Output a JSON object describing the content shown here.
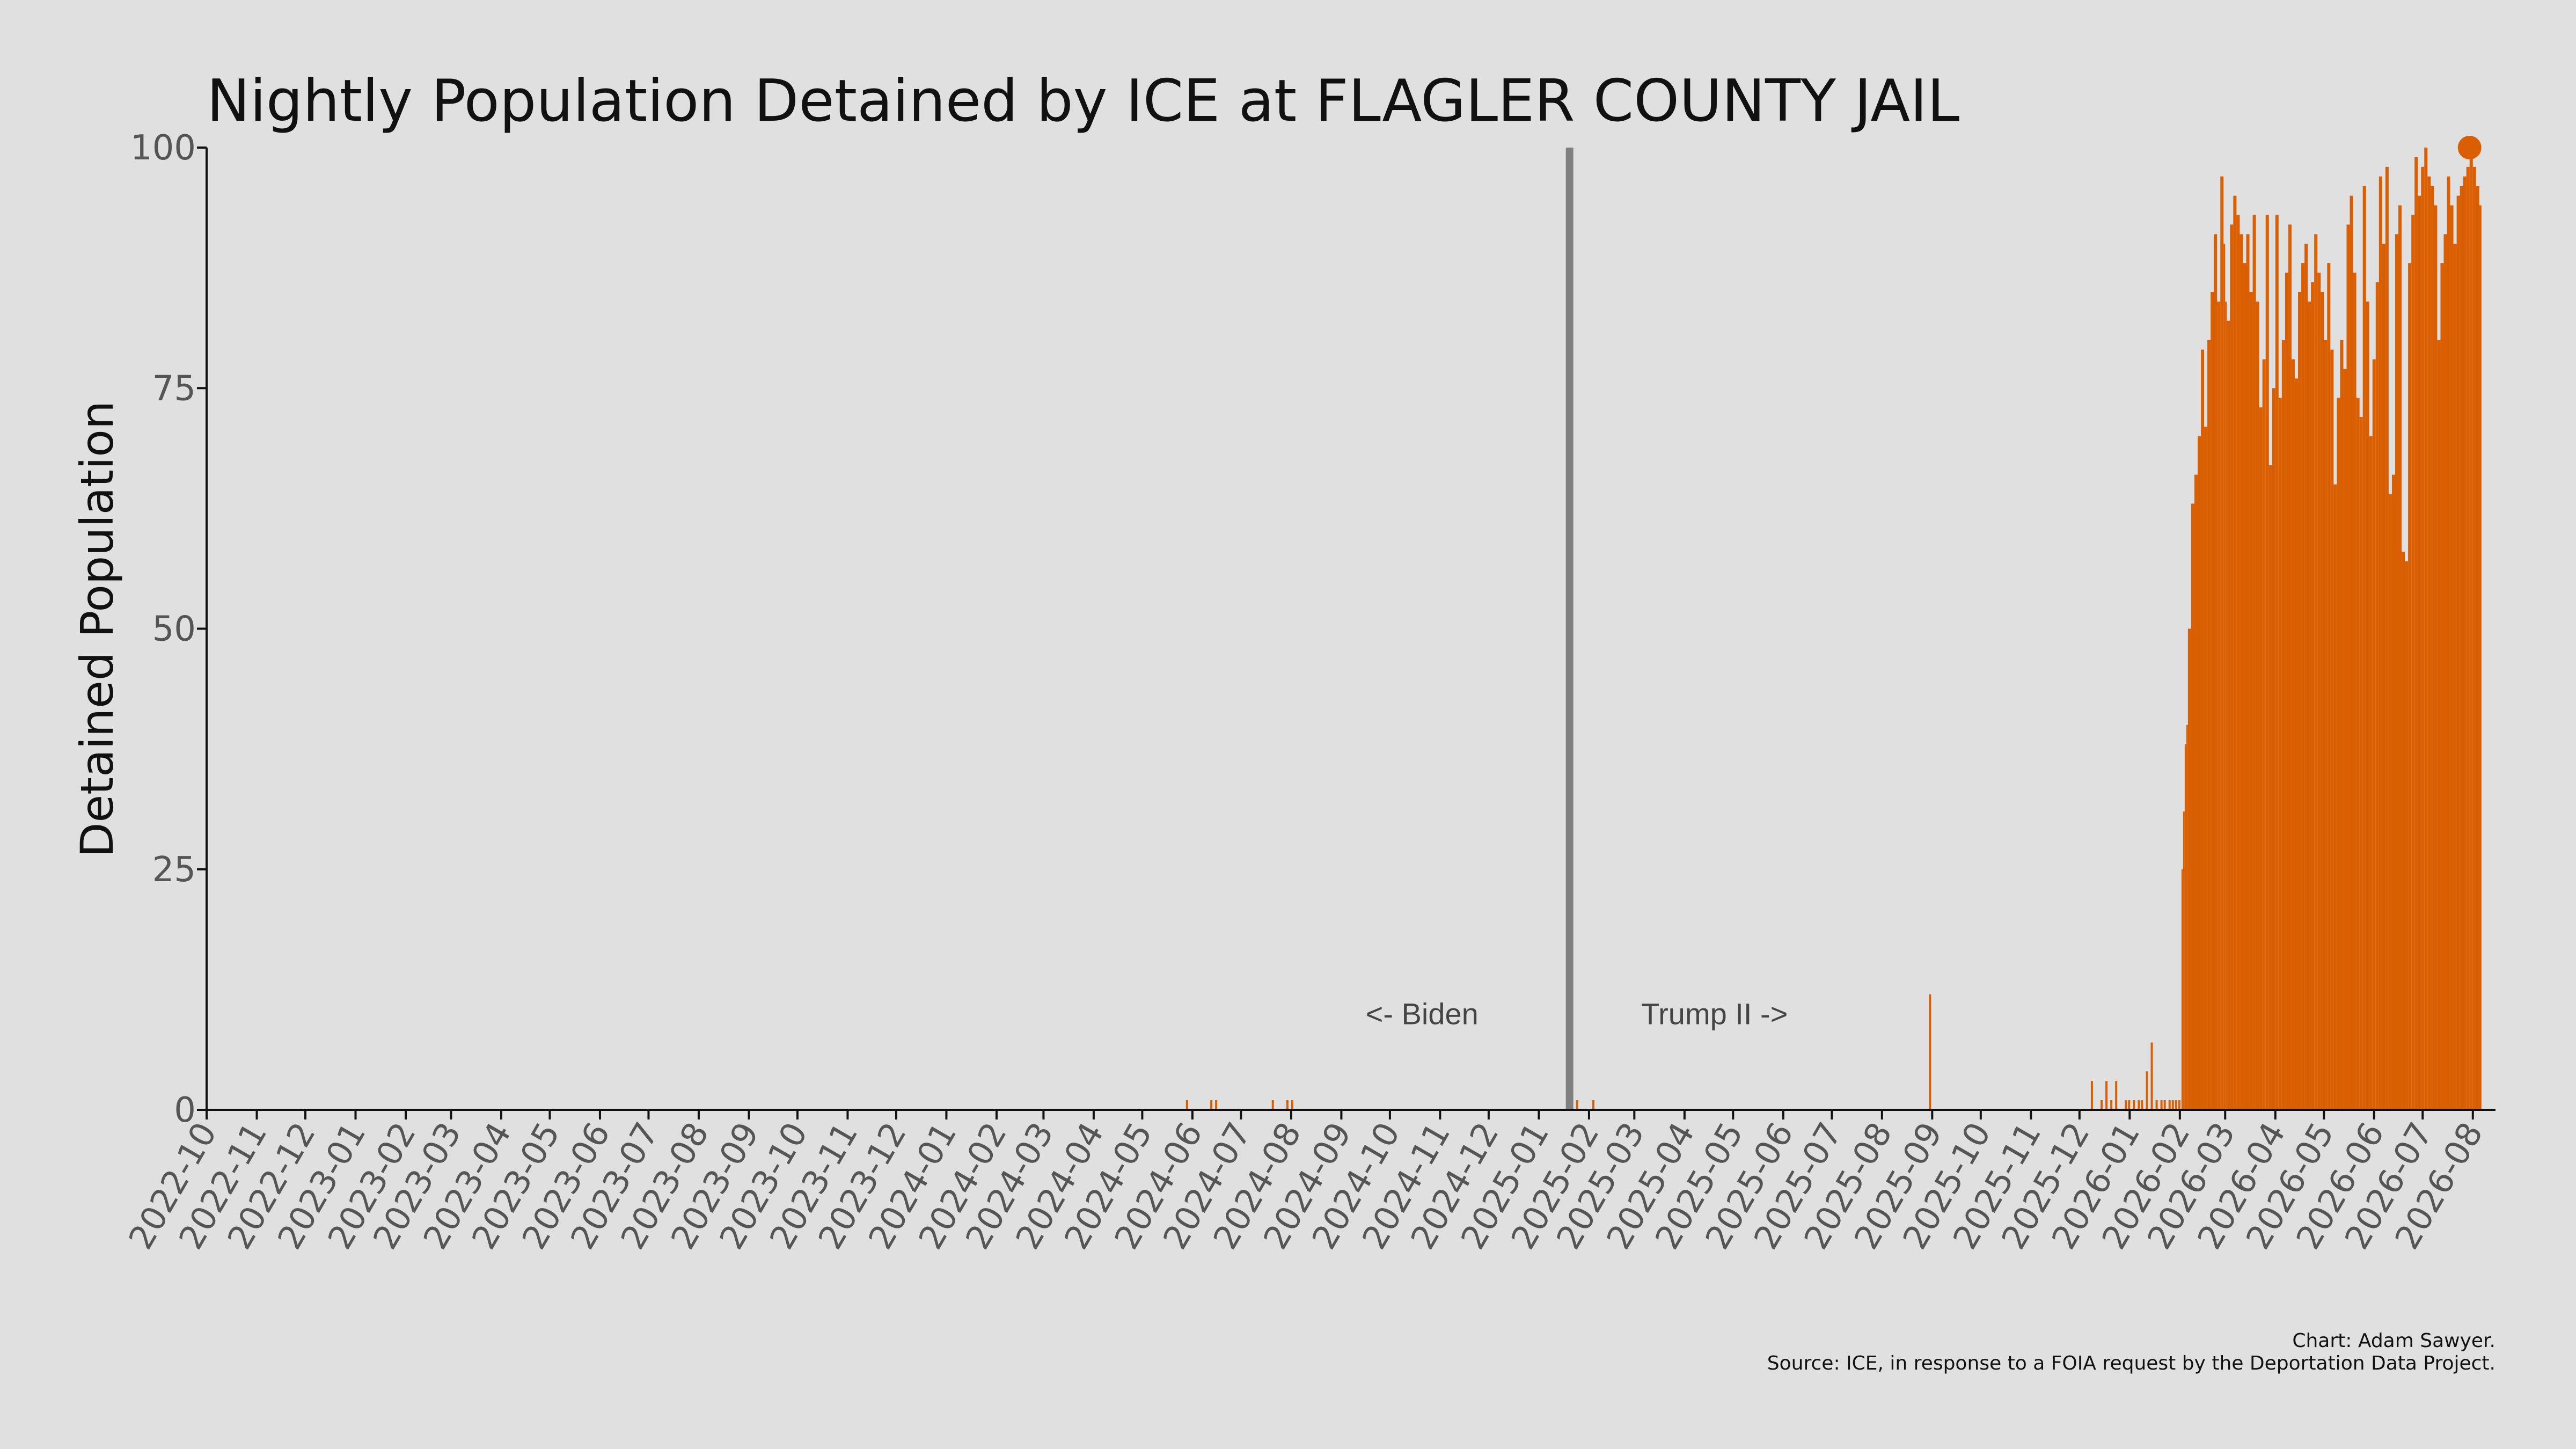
{
  "chart_data": {
    "type": "bar",
    "title": "Nightly Population Detained by ICE at FLAGLER COUNTY JAIL",
    "xlabel": "",
    "ylabel": "Detained Population",
    "ylim": [
      0,
      100
    ],
    "yticks": [
      "0",
      "25",
      "50",
      "75",
      "100"
    ],
    "x_ticks": [
      "2022-10",
      "2022-11",
      "2022-12",
      "2023-01",
      "2023-02",
      "2023-03",
      "2023-04",
      "2023-05",
      "2023-06",
      "2023-07",
      "2023-08",
      "2023-09",
      "2023-10",
      "2023-11",
      "2023-12",
      "2024-01",
      "2024-02",
      "2024-03",
      "2024-04",
      "2024-05",
      "2024-06",
      "2024-07",
      "2024-08",
      "2024-09",
      "2024-10",
      "2024-11",
      "2024-12",
      "2025-01",
      "2025-02",
      "2025-03",
      "2025-04",
      "2025-05",
      "2025-06",
      "2025-07",
      "2025-08",
      "2025-09",
      "2025-10",
      "2025-11",
      "2025-12",
      "2026-01",
      "2026-02",
      "2026-03",
      "2026-04",
      "2026-05",
      "2026-06",
      "2026-07",
      "2026-08"
    ],
    "x_range": [
      "2022-10-01",
      "2026-08-15"
    ],
    "grid": false,
    "color": "#d95f02",
    "divider": {
      "date": "2025-01-20",
      "color": "#808080"
    },
    "annotations": {
      "left": "<- Biden",
      "right": "Trump II ->"
    },
    "series": [
      {
        "x": [
          "2024-05-28",
          "2024-06-12",
          "2024-06-15",
          "2024-07-20",
          "2024-07-29",
          "2024-08-01",
          "2025-01-20",
          "2025-01-24",
          "2025-02-03",
          "2025-08-30",
          "2025-12-08",
          "2025-12-14",
          "2025-12-17",
          "2025-12-20",
          "2025-12-23",
          "2025-12-29",
          "2025-12-31",
          "2026-01-03",
          "2026-01-06",
          "2026-01-08",
          "2026-01-11",
          "2026-01-14",
          "2026-01-17",
          "2026-01-20",
          "2026-01-22",
          "2026-01-25",
          "2026-01-27",
          "2026-01-29",
          "2026-01-31",
          "2026-02-02",
          "2026-02-03",
          "2026-02-04",
          "2026-02-05",
          "2026-02-06",
          "2026-02-08",
          "2026-02-10",
          "2026-02-12",
          "2026-02-14",
          "2026-02-16",
          "2026-02-18",
          "2026-02-20",
          "2026-02-22",
          "2026-02-24",
          "2026-02-26",
          "2026-02-28",
          "2026-03-01",
          "2026-03-02",
          "2026-03-04",
          "2026-03-06",
          "2026-03-08",
          "2026-03-10",
          "2026-03-12",
          "2026-03-14",
          "2026-03-16",
          "2026-03-18",
          "2026-03-20",
          "2026-03-22",
          "2026-03-24",
          "2026-03-26",
          "2026-03-28",
          "2026-03-30",
          "2026-04-01",
          "2026-04-03",
          "2026-04-05",
          "2026-04-07",
          "2026-04-09",
          "2026-04-11",
          "2026-04-13",
          "2026-04-15",
          "2026-04-17",
          "2026-04-19",
          "2026-04-21",
          "2026-04-23",
          "2026-04-25",
          "2026-04-27",
          "2026-04-29",
          "2026-05-01",
          "2026-05-03",
          "2026-05-05",
          "2026-05-07",
          "2026-05-09",
          "2026-05-11",
          "2026-05-13",
          "2026-05-15",
          "2026-05-17",
          "2026-05-19",
          "2026-05-21",
          "2026-05-23",
          "2026-05-25",
          "2026-05-27",
          "2026-05-29",
          "2026-05-31",
          "2026-06-02",
          "2026-06-04",
          "2026-06-06",
          "2026-06-08",
          "2026-06-10",
          "2026-06-12",
          "2026-06-14",
          "2026-06-16",
          "2026-06-18",
          "2026-06-20",
          "2026-06-22",
          "2026-06-24",
          "2026-06-26",
          "2026-06-28",
          "2026-06-30",
          "2026-07-02",
          "2026-07-04",
          "2026-07-06",
          "2026-07-08",
          "2026-07-10",
          "2026-07-12",
          "2026-07-14",
          "2026-07-16",
          "2026-07-18",
          "2026-07-20",
          "2026-07-22",
          "2026-07-24",
          "2026-07-26",
          "2026-07-28",
          "2026-07-30",
          "2026-08-01",
          "2026-08-03",
          "2026-08-05"
        ],
        "values": [
          1,
          1,
          1,
          1,
          1,
          1,
          1,
          1,
          1,
          12,
          3,
          1,
          3,
          1,
          3,
          1,
          1,
          1,
          1,
          1,
          4,
          7,
          1,
          1,
          1,
          1,
          1,
          1,
          1,
          25,
          31,
          38,
          40,
          50,
          63,
          66,
          70,
          79,
          71,
          80,
          85,
          91,
          84,
          97,
          90,
          84,
          82,
          92,
          95,
          93,
          91,
          88,
          91,
          85,
          93,
          84,
          73,
          78,
          93,
          67,
          75,
          93,
          74,
          80,
          87,
          92,
          78,
          76,
          85,
          88,
          90,
          84,
          86,
          91,
          87,
          85,
          80,
          88,
          79,
          65,
          74,
          80,
          77,
          92,
          95,
          87,
          74,
          72,
          96,
          84,
          70,
          78,
          86,
          97,
          90,
          98,
          64,
          66,
          91,
          94,
          58,
          57,
          88,
          93,
          99,
          95,
          98,
          100,
          97,
          96,
          94,
          80,
          88,
          91,
          97,
          94,
          90,
          95,
          96,
          97,
          98,
          100,
          98,
          96,
          94
        ],
        "end_marker": 100
      }
    ],
    "caption": {
      "credit": "Chart: Adam Sawyer.",
      "source": "Source: ICE, in response to a FOIA request by the Deportation Data Project."
    }
  }
}
